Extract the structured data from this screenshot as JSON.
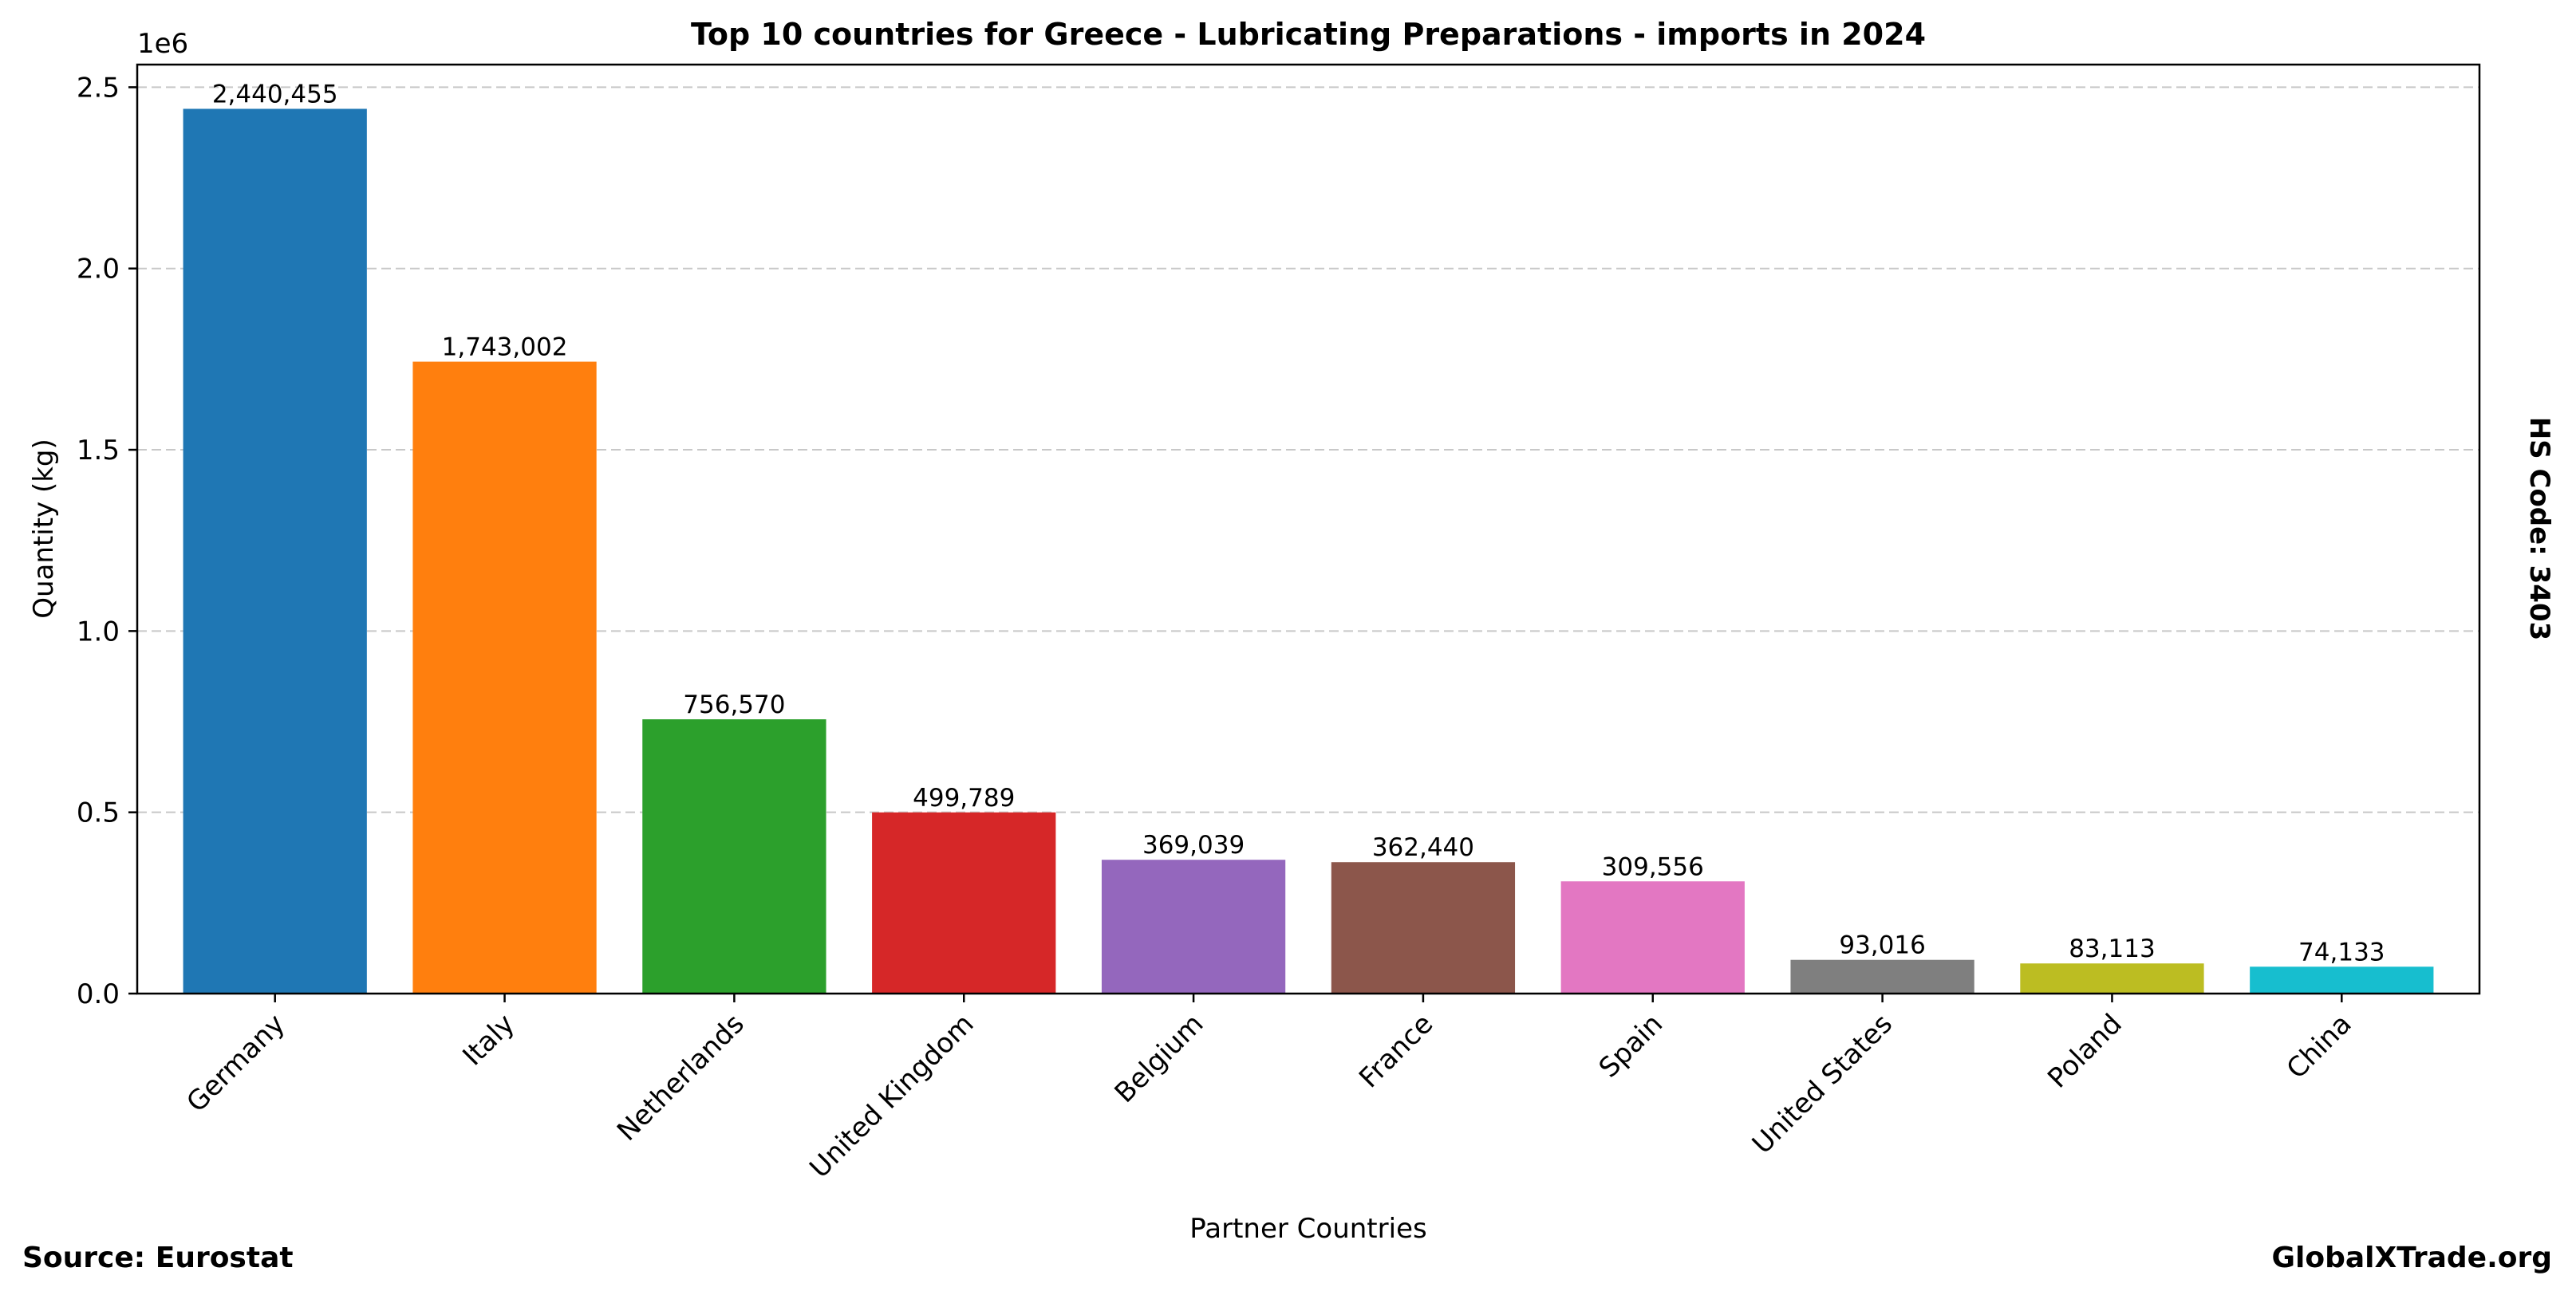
{
  "chart_data": {
    "type": "bar",
    "title": "Top 10 countries for Greece - Lubricating Preparations - imports in 2024",
    "xlabel": "Partner Countries",
    "ylabel": "Quantity (kg)",
    "y_scale_label": "1e6",
    "y_scale": 1000000,
    "ylim": [
      0,
      2562477.75
    ],
    "yticks": [
      0,
      500000,
      1000000,
      1500000,
      2000000,
      2500000
    ],
    "ytick_labels": [
      "0.0",
      "0.5",
      "1.0",
      "1.5",
      "2.0",
      "2.5"
    ],
    "grid": "horizontal dashed",
    "categories": [
      "Germany",
      "Italy",
      "Netherlands",
      "United Kingdom",
      "Belgium",
      "France",
      "Spain",
      "United States",
      "Poland",
      "China"
    ],
    "values": [
      2440455,
      1743002,
      756570,
      499789,
      369039,
      362440,
      309556,
      93016,
      83113,
      74133
    ],
    "value_labels": [
      "2,440,455",
      "1,743,002",
      "756,570",
      "499,789",
      "369,039",
      "362,440",
      "309,556",
      "93,016",
      "83,113",
      "74,133"
    ],
    "colors": [
      "#1f77b4",
      "#ff7f0e",
      "#2ca02c",
      "#d62728",
      "#9467bd",
      "#8c564b",
      "#e377c2",
      "#7f7f7f",
      "#bcbd22",
      "#17becf"
    ]
  },
  "side_label": "HS Code: 3403",
  "source_label": "Source: Eurostat",
  "brand_label": "GlobalXTrade.org"
}
